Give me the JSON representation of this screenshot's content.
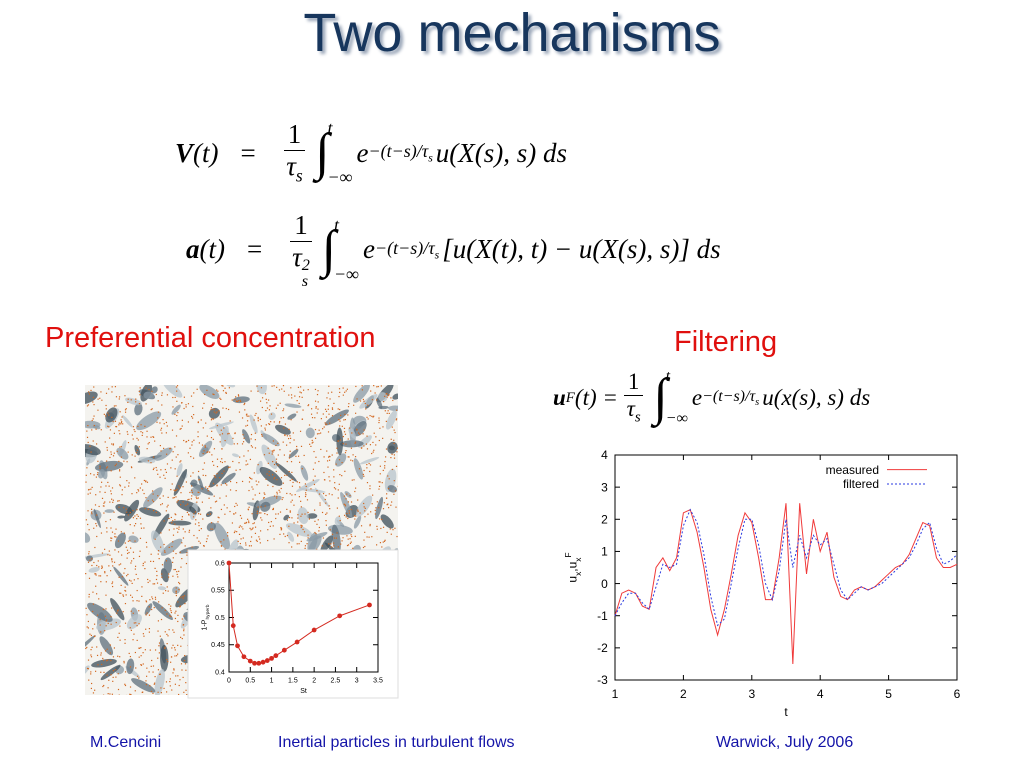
{
  "title": "Two mechanisms",
  "equations": [
    {
      "lhs": "V",
      "lhs_tail": "(t)",
      "eq": "=",
      "num": "1",
      "den": "τ",
      "den_sub": "s",
      "integral": "∫",
      "upper": "t",
      "lower": "−∞",
      "base": "e",
      "exp": "−(t−s)/τ",
      "exp_sub": "s",
      "body": "u(X(s), s) ds"
    },
    {
      "lhs": "a",
      "lhs_tail": "(t)",
      "eq": "=",
      "num": "1",
      "den": "τ",
      "den_sub": "s",
      "den_sup": "2",
      "integral": "∫",
      "upper": "t",
      "lower": "−∞",
      "base": "e",
      "exp": "−(t−s)/τ",
      "exp_sub": "s",
      "body": "[u(X(t), t) − u(X(s), s)] ds"
    },
    {
      "lhs": "u",
      "lhs_sub": "F",
      "lhs_tail": "(t) =",
      "num": "1",
      "den": "τ",
      "den_sub": "s",
      "integral": "∫",
      "upper": "t",
      "lower": "−∞",
      "base": "e",
      "exp": "−(t−s)/τ",
      "exp_sub": "s",
      "body": "u(x(s), s) ds"
    }
  ],
  "left_heading": "Preferential concentration",
  "right_heading": "Filtering",
  "chart_data": [
    {
      "type": "line",
      "markers": true,
      "xlabel": "St",
      "ylabel": [
        {
          "text": "1-P"
        },
        {
          "text": "hyperb",
          "sub": true
        }
      ],
      "x": [
        0,
        0.1,
        0.2,
        0.35,
        0.5,
        0.6,
        0.7,
        0.8,
        0.9,
        1.0,
        1.1,
        1.3,
        1.6,
        2.0,
        2.6,
        3.3
      ],
      "series": [
        {
          "color": "#d42a20",
          "values": [
            0.6,
            0.485,
            0.448,
            0.428,
            0.42,
            0.416,
            0.416,
            0.418,
            0.421,
            0.425,
            0.43,
            0.44,
            0.455,
            0.477,
            0.503,
            0.523
          ]
        }
      ],
      "xlim": [
        0,
        3.5
      ],
      "ylim": [
        0.4,
        0.6
      ],
      "xticks": [
        0,
        0.5,
        1,
        1.5,
        2,
        2.5,
        3,
        3.5
      ],
      "yticks": [
        0.4,
        0.45,
        0.5,
        0.55,
        0.6
      ]
    },
    {
      "type": "line",
      "markers": false,
      "xlabel": "t",
      "legend": "upper right",
      "ylabel": [
        {
          "text": "u"
        },
        {
          "text": "x",
          "sub": true
        },
        {
          "text": ",u"
        },
        {
          "text": "x",
          "sub": true
        },
        {
          "text": "F",
          "sup": true
        }
      ],
      "x": [
        1.0,
        1.1,
        1.2,
        1.3,
        1.4,
        1.5,
        1.6,
        1.7,
        1.8,
        1.9,
        2.0,
        2.1,
        2.2,
        2.3,
        2.4,
        2.5,
        2.6,
        2.7,
        2.8,
        2.9,
        3.0,
        3.1,
        3.2,
        3.3,
        3.4,
        3.5,
        3.6,
        3.7,
        3.8,
        3.9,
        4.0,
        4.1,
        4.2,
        4.3,
        4.4,
        4.5,
        4.6,
        4.7,
        4.8,
        4.9,
        5.0,
        5.1,
        5.2,
        5.3,
        5.4,
        5.5,
        5.6,
        5.7,
        5.8,
        5.9,
        6.0
      ],
      "series": [
        {
          "name": "measured",
          "color": "#f03a3a",
          "dash": false,
          "values": [
            -1.0,
            -0.3,
            -0.2,
            -0.3,
            -0.7,
            -0.8,
            0.5,
            0.8,
            0.4,
            0.8,
            2.2,
            2.3,
            1.6,
            0.5,
            -0.8,
            -1.6,
            -0.8,
            0.3,
            1.5,
            2.2,
            1.9,
            0.8,
            -0.5,
            -0.5,
            0.8,
            2.5,
            -2.5,
            2.5,
            0.3,
            2.0,
            1.0,
            1.6,
            0.2,
            -0.4,
            -0.5,
            -0.2,
            -0.1,
            -0.2,
            -0.1,
            0.1,
            0.3,
            0.5,
            0.6,
            0.9,
            1.4,
            1.9,
            1.8,
            0.8,
            0.5,
            0.5,
            0.6
          ]
        },
        {
          "name": "filtered",
          "color": "#2a3ae0",
          "dash": true,
          "values": [
            -1.0,
            -0.6,
            -0.3,
            -0.3,
            -0.6,
            -0.8,
            -0.1,
            0.6,
            0.5,
            0.6,
            1.8,
            2.3,
            1.9,
            0.9,
            -0.4,
            -1.3,
            -1.1,
            0.0,
            1.1,
            2.0,
            2.0,
            1.2,
            0.0,
            -0.5,
            0.4,
            2.0,
            0.5,
            1.5,
            0.8,
            1.5,
            1.2,
            1.4,
            0.6,
            -0.2,
            -0.5,
            -0.3,
            -0.1,
            -0.2,
            -0.1,
            0.0,
            0.2,
            0.4,
            0.6,
            0.8,
            1.2,
            1.7,
            1.9,
            1.1,
            0.6,
            0.7,
            0.9
          ]
        }
      ],
      "xlim": [
        1,
        6
      ],
      "ylim": [
        -3,
        4
      ],
      "xticks": [
        1,
        2,
        3,
        4,
        5,
        6
      ],
      "yticks": [
        -3,
        -2,
        -1,
        0,
        1,
        2,
        3,
        4
      ]
    }
  ],
  "footer": {
    "author": "M.Cencini",
    "talk": "Inertial particles in turbulent flows",
    "venue": "Warwick, July 2006"
  }
}
